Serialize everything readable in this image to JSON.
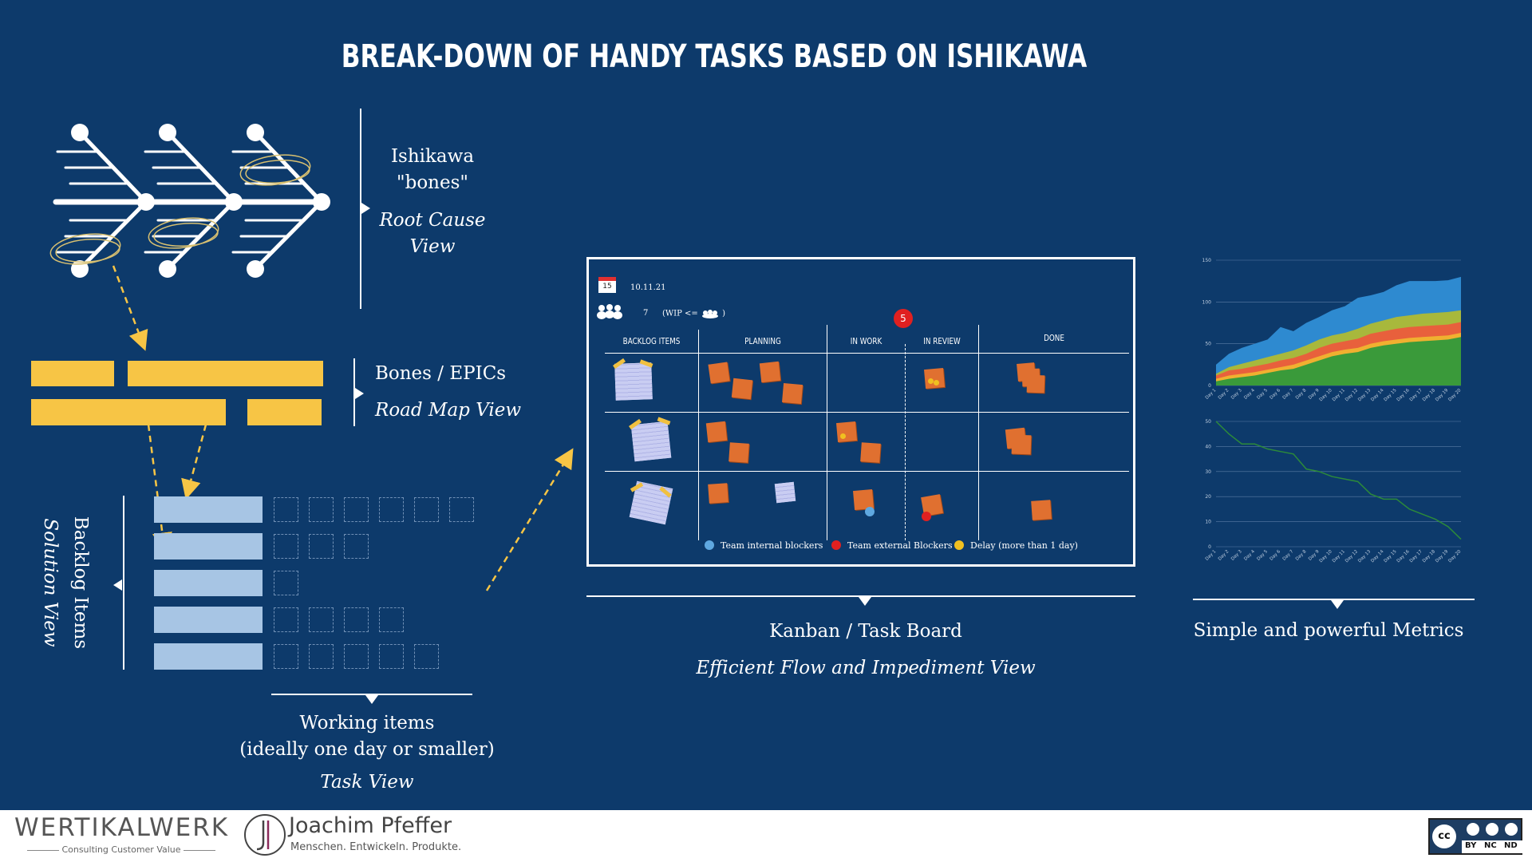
{
  "title": "BREAK-DOWN OF HANDY TASKS  BASED ON ISHIKAWA",
  "ishikawa": {
    "label_line1": "Ishikawa",
    "label_line2": "\"bones\"",
    "view_line1": "Root Cause",
    "view_line2": "View"
  },
  "epics": {
    "label": "Bones / EPICs",
    "view": "Road Map View"
  },
  "backlog": {
    "label": "Backlog Items",
    "view": "Solution View"
  },
  "working": {
    "label_line1": "Working items",
    "label_line2": "(ideally one day or smaller)",
    "view": "Task View"
  },
  "kanban": {
    "date": "10.11.21",
    "calendar_day": "15",
    "wip_count": "7",
    "wip_text": "(WIP <=",
    "wip_close": ")",
    "blocker_count": "5",
    "columns": [
      "BACKLOG ITEMS",
      "PLANNING",
      "IN WORK",
      "IN REVIEW",
      "DONE"
    ],
    "legend": [
      "Team internal blockers",
      "Team external Blockers",
      "Delay (more than 1 day)"
    ],
    "legend_colors": [
      "#5fa8e0",
      "#e02020",
      "#f0c020"
    ],
    "label": "Kanban / Task Board",
    "view": "Efficient Flow and Impediment View"
  },
  "metrics": {
    "label": "Simple and powerful Metrics"
  },
  "footer": {
    "logo1": "WERTIKALWERK",
    "logo1_sub": "Consulting Customer Value",
    "logo2_name": "Joachim Pfeffer",
    "logo2_sub": "Menschen. Entwickeln. Produkte.",
    "license": [
      "BY",
      "NC",
      "ND"
    ]
  },
  "chart_data": [
    {
      "type": "area",
      "x": [
        "Day 1",
        "Day 2",
        "Day 3",
        "Day 4",
        "Day 5",
        "Day 6",
        "Day 7",
        "Day 8",
        "Day 9",
        "Day 10",
        "Day 11",
        "Day 12",
        "Day 13",
        "Day 14",
        "Day 15",
        "Day 16",
        "Day 17",
        "Day 18",
        "Day 19",
        "Day 20"
      ],
      "yticks": [
        0,
        50,
        100,
        150
      ],
      "ylim": [
        0,
        150
      ],
      "series": [
        {
          "color": "#3a9a3a",
          "values": [
            5,
            8,
            10,
            12,
            15,
            18,
            20,
            25,
            30,
            35,
            38,
            40,
            45,
            48,
            50,
            52,
            53,
            54,
            55,
            58
          ]
        },
        {
          "color": "#f0b030",
          "values": [
            8,
            12,
            14,
            16,
            19,
            22,
            25,
            30,
            35,
            40,
            43,
            45,
            50,
            53,
            55,
            57,
            58,
            59,
            60,
            63
          ]
        },
        {
          "color": "#e8603c",
          "values": [
            12,
            18,
            20,
            23,
            26,
            30,
            33,
            38,
            45,
            50,
            53,
            56,
            62,
            65,
            68,
            70,
            71,
            72,
            73,
            76
          ]
        },
        {
          "color": "#a8b83c",
          "values": [
            14,
            22,
            26,
            30,
            34,
            38,
            42,
            48,
            55,
            60,
            63,
            68,
            74,
            78,
            82,
            84,
            86,
            87,
            88,
            90
          ]
        },
        {
          "color": "#2e8ad0",
          "values": [
            25,
            38,
            45,
            50,
            55,
            70,
            65,
            75,
            82,
            90,
            95,
            105,
            108,
            112,
            120,
            125,
            125,
            125,
            126,
            130
          ]
        }
      ]
    },
    {
      "type": "line",
      "x": [
        "Day 1",
        "Day 2",
        "Day 3",
        "Day 4",
        "Day 5",
        "Day 6",
        "Day 7",
        "Day 8",
        "Day 9",
        "Day 10",
        "Day 11",
        "Day 12",
        "Day 13",
        "Day 14",
        "Day 15",
        "Day 16",
        "Day 17",
        "Day 18",
        "Day 19",
        "Day 20"
      ],
      "yticks": [
        0,
        10,
        20,
        30,
        40,
        50
      ],
      "ylim": [
        0,
        50
      ],
      "series": [
        {
          "color": "#2c8a3a",
          "values": [
            50,
            45,
            41,
            41,
            39,
            38,
            37,
            31,
            30,
            28,
            27,
            26,
            21,
            19,
            19,
            15,
            13,
            11,
            8,
            3
          ]
        }
      ]
    }
  ]
}
